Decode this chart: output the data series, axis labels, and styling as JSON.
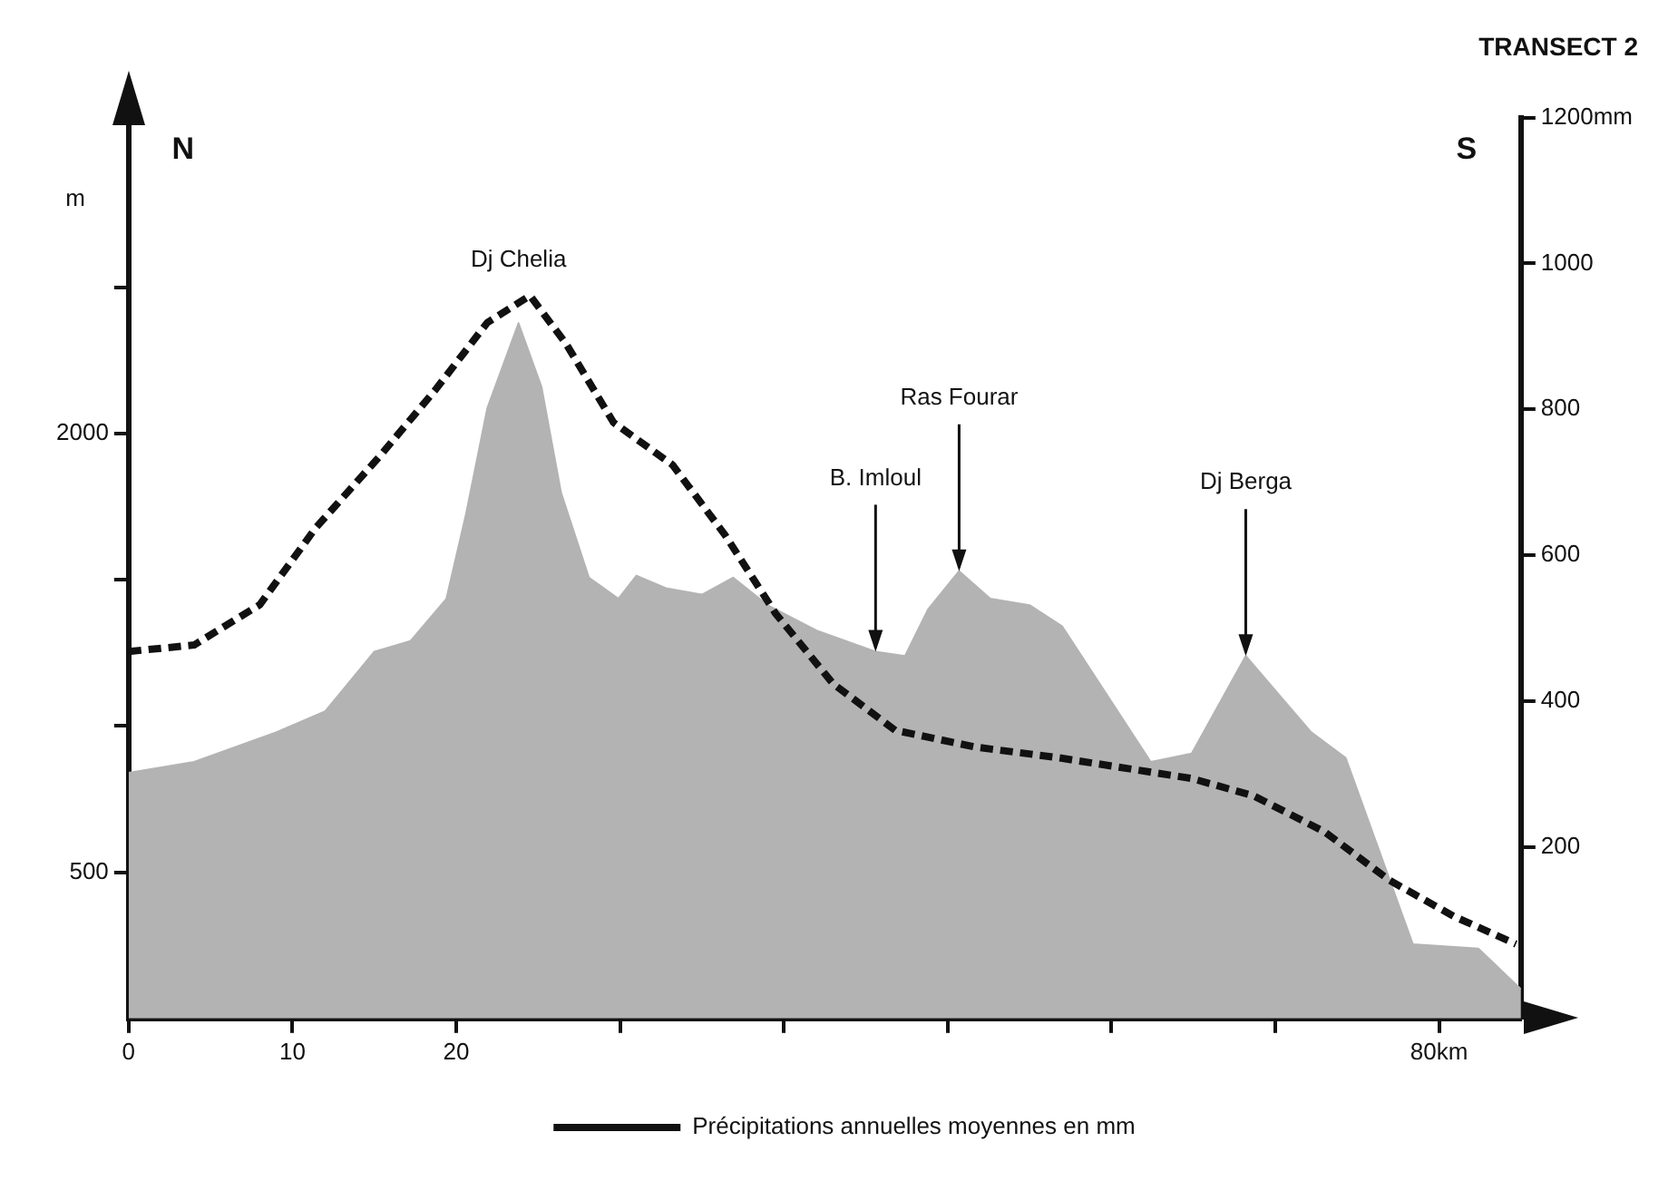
{
  "chart_data": {
    "type": "area",
    "title": "TRANSECT 2",
    "ylabel": "m",
    "annotations": [
      "N",
      "S",
      {
        "text": "Dj Chelia",
        "x": 23.8,
        "y": 2377
      },
      {
        "text": "B. Imloul",
        "x": 45.6,
        "y": 1254
      },
      {
        "text": "Ras Fourar",
        "x": 50.7,
        "y": 1529
      },
      {
        "text": "Dj Berga",
        "x": 68.2,
        "y": 1239
      }
    ],
    "series": [
      {
        "color": "#b3b3b3",
        "x": [
          0,
          4,
          9,
          12,
          15,
          17.2,
          19.4,
          20.6,
          21.9,
          23.8,
          25.2,
          26.4,
          28.1,
          29.9,
          31,
          32.8,
          35,
          36.9,
          39,
          42,
          45.6,
          47.4,
          48.8,
          50.7,
          52.6,
          55,
          57,
          62.4,
          64.9,
          68.2,
          72.2,
          74.3,
          78.4,
          82.4,
          84.7,
          85
        ],
        "values": [
          840,
          877,
          978,
          1050,
          1254,
          1290,
          1435,
          1725,
          2087,
          2377,
          2160,
          1797,
          1507,
          1435,
          1514,
          1471,
          1449,
          1507,
          1413,
          1326,
          1254,
          1239,
          1398,
          1529,
          1435,
          1413,
          1340,
          877,
          906,
          1239,
          978,
          891,
          254,
          239,
          116,
          100
        ]
      },
      {
        "type": "line",
        "name": "Précipitations annuelles moyennes en mm",
        "color": "#111111",
        "axis": "y2",
        "line_style": "dashed",
        "x": [
          0,
          4,
          8,
          11.4,
          15.3,
          18.7,
          21.9,
          24.5,
          26.7,
          29.6,
          33.2,
          36.4,
          39.5,
          43,
          46.8,
          51.7,
          56.6,
          64.9,
          68.7,
          73,
          77,
          80.9,
          84.7
        ],
        "values": [
          468,
          477,
          532,
          637,
          735,
          826,
          919,
          956,
          890,
          782,
          724,
          628,
          520,
          424,
          360,
          337,
          323,
          294,
          270,
          221,
          154,
          105,
          67
        ]
      }
    ],
    "xlim": [
      0,
      85
    ],
    "xticks": [
      0,
      10,
      20,
      {
        "value": 30,
        "label": null
      },
      {
        "value": 40,
        "label": null
      },
      {
        "value": 50,
        "label": null
      },
      {
        "value": 60,
        "label": null
      },
      {
        "value": 70,
        "label": null
      },
      {
        "value": 80,
        "label": "80km"
      }
    ],
    "ylim": [
      0,
      3080
    ],
    "yticks": [
      500,
      {
        "value": 1000,
        "label": null
      },
      {
        "value": 1500,
        "label": null
      },
      2000,
      {
        "value": 2500,
        "label": null
      }
    ],
    "y2lim": [
      -35,
      1200
    ],
    "y2ticks": [
      200,
      400,
      600,
      800,
      1000,
      {
        "value": 1200,
        "label": "1200mm"
      }
    ],
    "grid": false,
    "legend": "bottom"
  }
}
